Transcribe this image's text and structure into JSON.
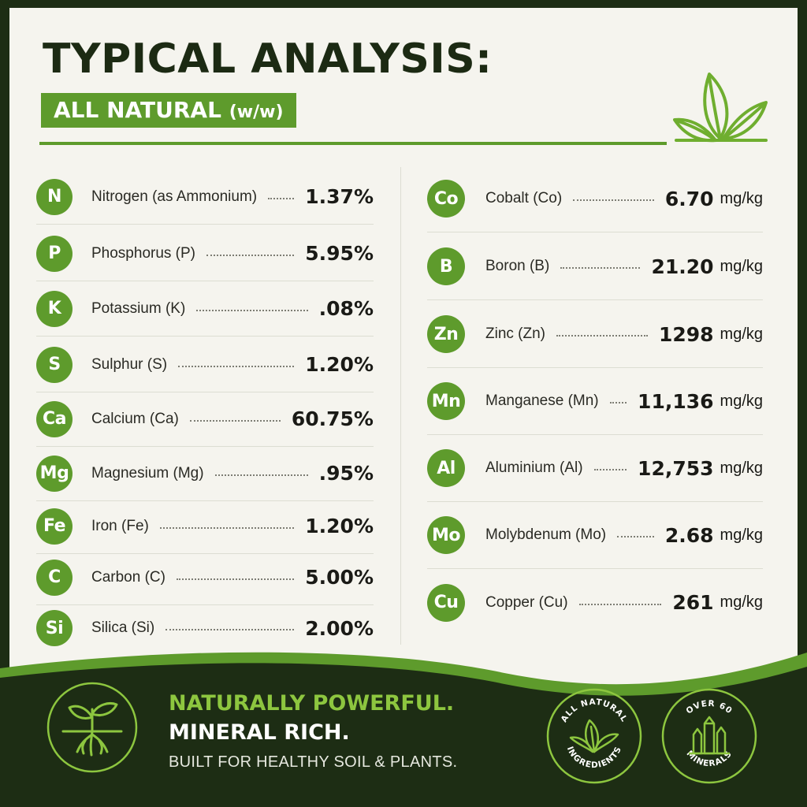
{
  "header": {
    "title": "TYPICAL ANALYSIS:",
    "subtitle_main": "ALL NATURAL",
    "subtitle_suffix": "(w/w)"
  },
  "left_column": [
    {
      "symbol": "N",
      "name": "Nitrogen (as Ammonium)",
      "value": "1.37%"
    },
    {
      "symbol": "P",
      "name": "Phosphorus (P)",
      "value": "5.95%"
    },
    {
      "symbol": "K",
      "name": "Potassium (K)",
      "value": ".08%"
    },
    {
      "symbol": "S",
      "name": "Sulphur (S)",
      "value": "1.20%"
    },
    {
      "symbol": "Ca",
      "name": "Calcium (Ca)",
      "value": "60.75%"
    },
    {
      "symbol": "Mg",
      "name": "Magnesium (Mg)",
      "value": ".95%"
    },
    {
      "symbol": "Fe",
      "name": "Iron (Fe)",
      "value": "1.20%"
    },
    {
      "symbol": "C",
      "name": "Carbon (C)",
      "value": "5.00%"
    },
    {
      "symbol": "Si",
      "name": "Silica (Si)",
      "value": "2.00%"
    }
  ],
  "right_column": [
    {
      "symbol": "Co",
      "name": "Cobalt (Co)",
      "value": "6.70",
      "unit": "mg/kg"
    },
    {
      "symbol": "B",
      "name": "Boron (B)",
      "value": "21.20",
      "unit": "mg/kg"
    },
    {
      "symbol": "Zn",
      "name": "Zinc (Zn)",
      "value": "1298",
      "unit": "mg/kg"
    },
    {
      "symbol": "Mn",
      "name": "Manganese (Mn)",
      "value": "11,136",
      "unit": "mg/kg"
    },
    {
      "symbol": "Al",
      "name": "Aluminium (Al)",
      "value": "12,753",
      "unit": "mg/kg"
    },
    {
      "symbol": "Mo",
      "name": "Molybdenum (Mo)",
      "value": "2.68",
      "unit": "mg/kg"
    },
    {
      "symbol": "Cu",
      "name": "Copper (Cu)",
      "value": "261",
      "unit": "mg/kg"
    }
  ],
  "footer": {
    "line1": "NATURALLY POWERFUL.",
    "line2": "MINERAL RICH.",
    "line3": "BUILT FOR HEALTHY SOIL & PLANTS.",
    "badge_natural_top": "ALL NATURAL",
    "badge_natural_bottom": "INGREDIENTS",
    "badge_minerals_top": "OVER 60",
    "badge_minerals_bottom": "MINERALS"
  },
  "colors": {
    "accent_green": "#5e9b2c",
    "light_green": "#8dc63f",
    "dark_green": "#1d2d14",
    "panel": "#f5f4ee"
  },
  "icons": {
    "header": "leaves-icon",
    "footer_left": "sprout-roots-icon",
    "badge_natural": "leaf-icon",
    "badge_minerals": "crystal-icon"
  }
}
